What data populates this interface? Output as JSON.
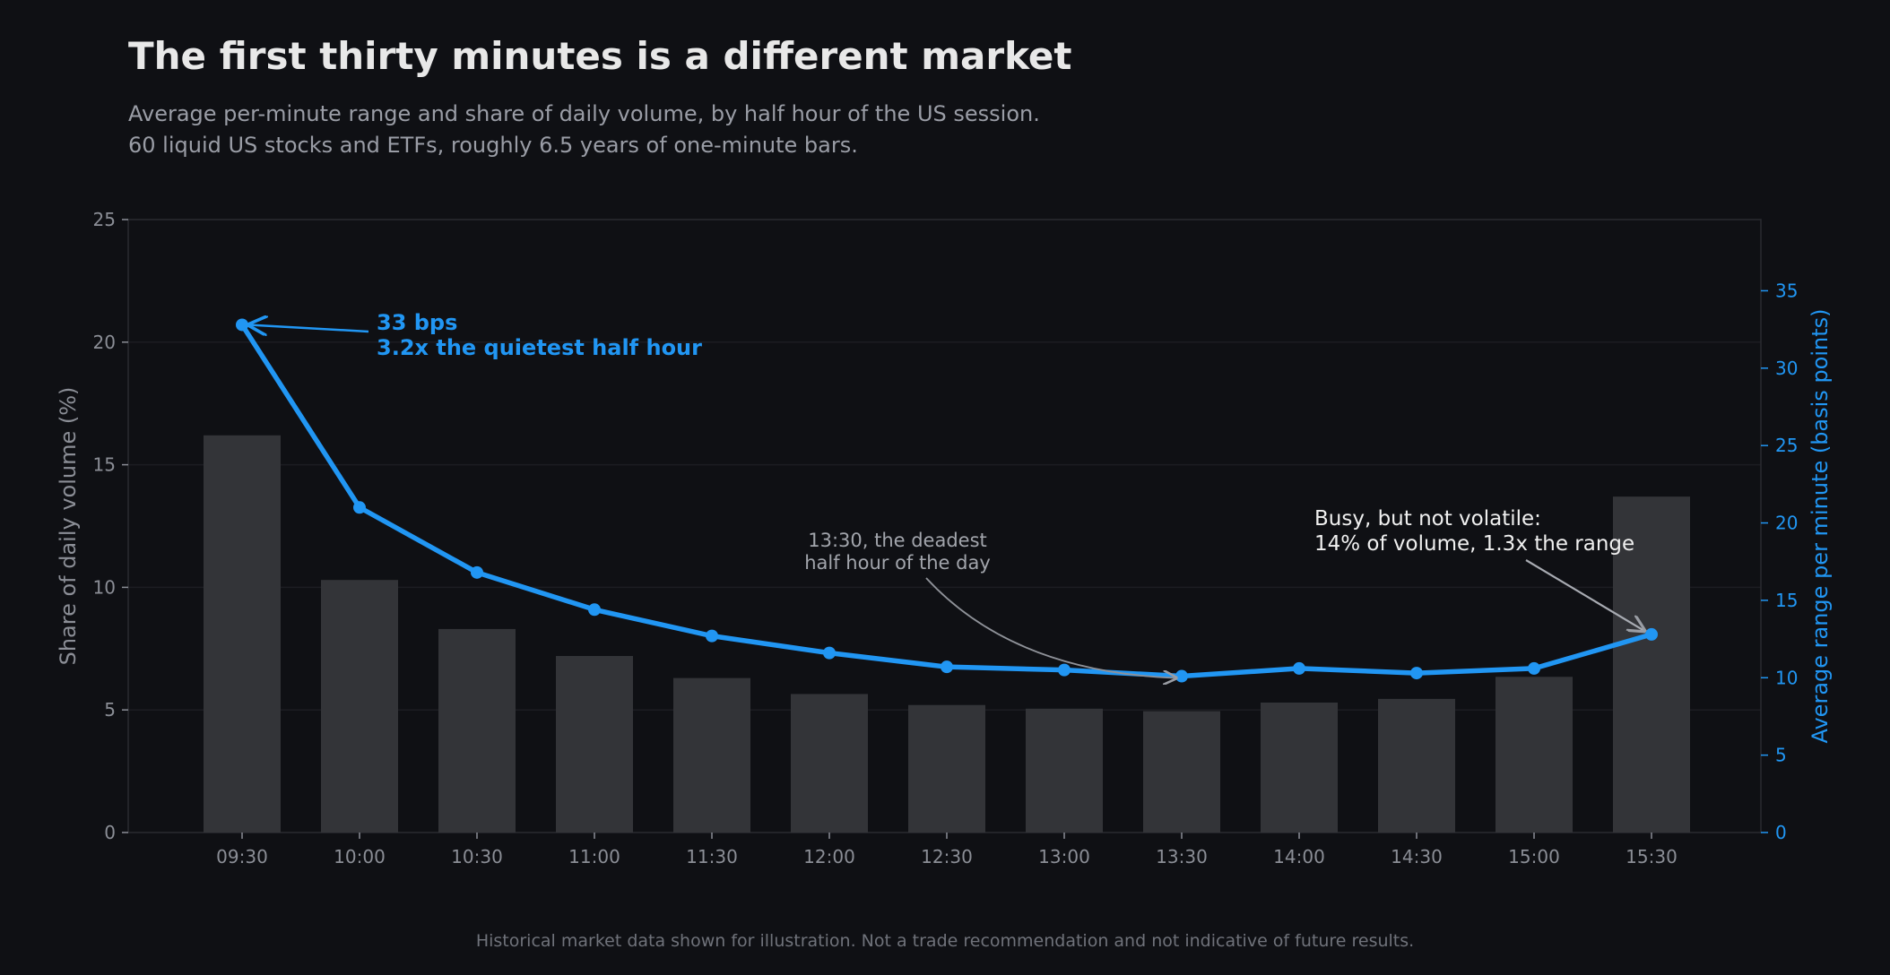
{
  "title": "The first thirty minutes is a different market",
  "subtitle_lines": [
    "Average per-minute range and share of daily volume, by half hour of the US session.",
    "60 liquid US stocks and ETFs, roughly 6.5 years of one-minute bars."
  ],
  "footnote": "Historical market data shown for illustration. Not a trade recommendation and not indicative of future results.",
  "colors": {
    "background": "#0f1014",
    "bars": "#333438",
    "line": "#2196f3",
    "left_axis_text": "#8b8e96",
    "right_axis_text": "#2196f3",
    "annotation_gray": "#a2a5ac",
    "annotation_white": "#f0f0f0"
  },
  "chart_data": {
    "type": "bar",
    "categories": [
      "09:30",
      "10:00",
      "10:30",
      "11:00",
      "11:30",
      "12:00",
      "12:30",
      "13:00",
      "13:30",
      "14:00",
      "14:30",
      "15:00",
      "15:30"
    ],
    "series": [
      {
        "name": "Share of daily volume (%)",
        "type": "bar",
        "axis": "left",
        "values": [
          16.2,
          10.3,
          8.3,
          7.2,
          6.3,
          5.65,
          5.2,
          5.05,
          4.95,
          5.3,
          5.45,
          6.35,
          13.7
        ]
      },
      {
        "name": "Average range per minute (basis points)",
        "type": "line",
        "axis": "right",
        "values": [
          32.8,
          21.0,
          16.8,
          14.4,
          12.7,
          11.6,
          10.7,
          10.5,
          10.1,
          10.6,
          10.3,
          10.6,
          12.8
        ]
      }
    ],
    "ylabel_left": "Share of daily volume (%)",
    "ylabel_right": "Average range per minute (basis points)",
    "ylim_left": [
      0,
      25
    ],
    "ylim_right": [
      0,
      39.6
    ],
    "yticks_left": [
      "0",
      "5",
      "10",
      "15",
      "20",
      "25"
    ],
    "yticks_right": [
      "0",
      "5",
      "10",
      "15",
      "20",
      "25",
      "30",
      "35"
    ],
    "grid": true,
    "annotations": [
      {
        "lines": [
          "33 bps",
          "3.2x the quietest half hour"
        ],
        "target_index": 0,
        "style": "blue-bold"
      },
      {
        "lines": [
          "13:30, the deadest",
          "half hour of the day"
        ],
        "target_index": 8,
        "style": "gray"
      },
      {
        "lines": [
          "Busy, but not volatile:",
          "14% of volume, 1.3x the range"
        ],
        "target_index": 12,
        "style": "white"
      }
    ]
  }
}
